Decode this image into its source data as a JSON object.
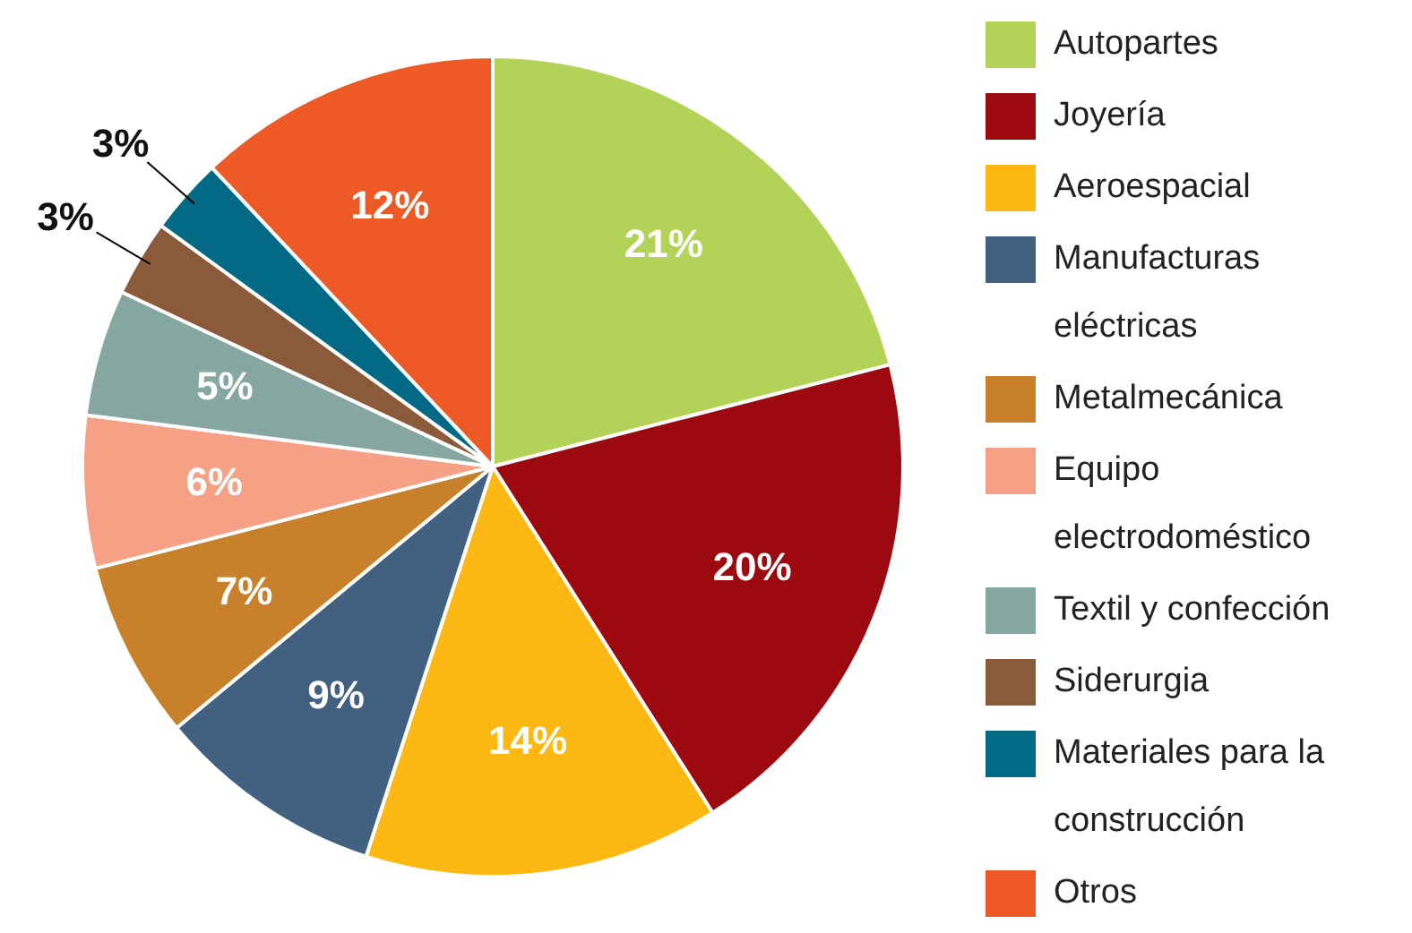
{
  "chart_data": {
    "type": "pie",
    "categories": [
      "Autopartes",
      "Joyería",
      "Aeroespacial",
      "Manufacturas eléctricas",
      "Metalmecánica",
      "Equipo electrodoméstico",
      "Textil y confección",
      "Siderurgia",
      "Materiales para la construcción",
      "Otros"
    ],
    "values": [
      21,
      20,
      14,
      9,
      7,
      6,
      5,
      3,
      3,
      12
    ],
    "value_labels": [
      "21%",
      "20%",
      "14%",
      "9%",
      "7%",
      "6%",
      "5%",
      "3%",
      "3%",
      "12%"
    ],
    "colors": [
      "#b2d357",
      "#9c0a10",
      "#fdb813",
      "#426080",
      "#c8802b",
      "#f6a085",
      "#86a6a2",
      "#8b5a3a",
      "#036a86",
      "#ee5a25"
    ],
    "legend": "right"
  }
}
